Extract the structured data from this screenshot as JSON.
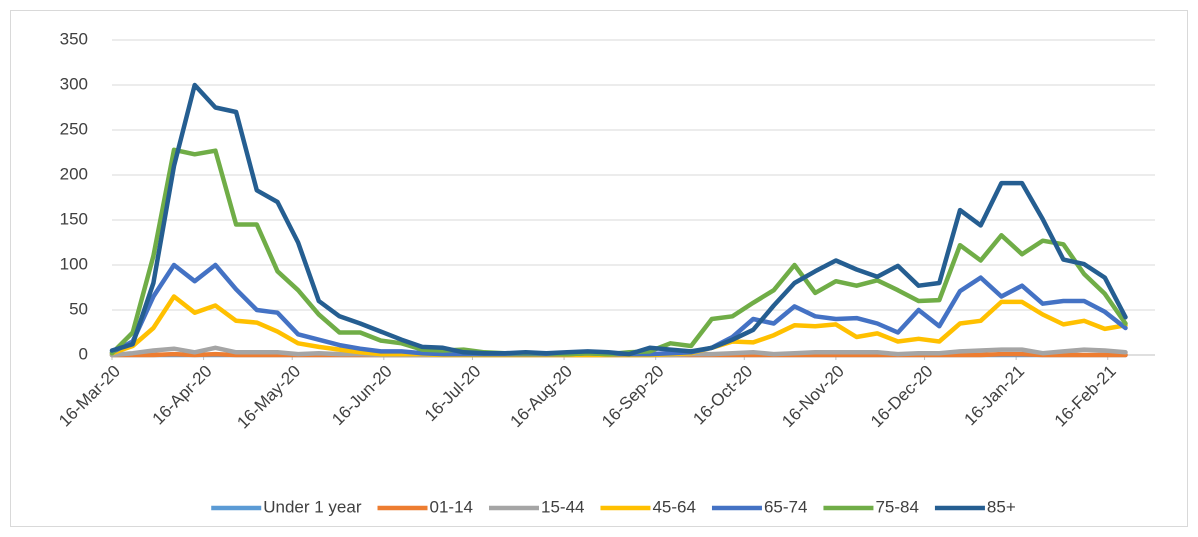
{
  "chart_data": {
    "type": "line",
    "x": [
      "2020-03-16",
      "2020-03-23",
      "2020-03-30",
      "2020-04-06",
      "2020-04-13",
      "2020-04-20",
      "2020-04-27",
      "2020-05-04",
      "2020-05-11",
      "2020-05-18",
      "2020-05-25",
      "2020-06-01",
      "2020-06-08",
      "2020-06-15",
      "2020-06-22",
      "2020-06-29",
      "2020-07-06",
      "2020-07-13",
      "2020-07-20",
      "2020-07-27",
      "2020-08-03",
      "2020-08-10",
      "2020-08-17",
      "2020-08-24",
      "2020-08-31",
      "2020-09-07",
      "2020-09-14",
      "2020-09-21",
      "2020-09-28",
      "2020-10-05",
      "2020-10-12",
      "2020-10-19",
      "2020-10-26",
      "2020-11-02",
      "2020-11-09",
      "2020-11-16",
      "2020-11-23",
      "2020-11-30",
      "2020-12-07",
      "2020-12-14",
      "2020-12-21",
      "2020-12-28",
      "2021-01-04",
      "2021-01-11",
      "2021-01-18",
      "2021-01-25",
      "2021-02-01",
      "2021-02-08",
      "2021-02-15",
      "2021-02-22"
    ],
    "series": [
      {
        "name": "Under 1 year",
        "color": "#5b9bd5",
        "values": [
          0,
          0,
          0,
          0,
          0,
          0,
          0,
          0,
          0,
          0,
          0,
          0,
          0,
          0,
          0,
          0,
          0,
          0,
          0,
          0,
          0,
          0,
          0,
          0,
          0,
          0,
          0,
          0,
          0,
          0,
          0,
          0,
          0,
          0,
          0,
          0,
          0,
          0,
          0,
          0,
          0,
          0,
          0,
          0,
          0,
          0,
          0,
          0,
          0,
          0
        ]
      },
      {
        "name": "01-14",
        "color": "#ed7d31",
        "values": [
          0,
          0,
          0,
          1,
          0,
          1,
          0,
          0,
          0,
          0,
          0,
          0,
          0,
          0,
          0,
          0,
          0,
          0,
          0,
          0,
          0,
          0,
          0,
          0,
          0,
          0,
          0,
          0,
          0,
          0,
          0,
          0,
          0,
          0,
          0,
          0,
          0,
          0,
          0,
          0,
          0,
          0,
          0,
          1,
          1,
          0,
          0,
          0,
          0,
          0
        ]
      },
      {
        "name": "15-44",
        "color": "#a5a5a5",
        "values": [
          0,
          2,
          5,
          7,
          3,
          8,
          3,
          3,
          3,
          1,
          2,
          1,
          1,
          0,
          0,
          0,
          0,
          0,
          0,
          0,
          0,
          0,
          0,
          0,
          0,
          0,
          0,
          0,
          1,
          1,
          2,
          3,
          1,
          2,
          3,
          3,
          3,
          3,
          1,
          2,
          2,
          4,
          5,
          6,
          6,
          2,
          4,
          6,
          5,
          3
        ]
      },
      {
        "name": "45-64",
        "color": "#ffc000",
        "values": [
          2,
          10,
          30,
          65,
          47,
          55,
          38,
          36,
          26,
          13,
          9,
          6,
          3,
          1,
          1,
          1,
          0,
          0,
          0,
          0,
          0,
          0,
          0,
          0,
          0,
          0,
          0,
          1,
          2,
          8,
          15,
          14,
          22,
          33,
          32,
          34,
          20,
          24,
          15,
          18,
          15,
          35,
          38,
          59,
          59,
          45,
          34,
          38,
          29,
          33
        ]
      },
      {
        "name": "65-74",
        "color": "#4472c4",
        "values": [
          3,
          15,
          65,
          100,
          82,
          100,
          73,
          50,
          47,
          23,
          17,
          11,
          7,
          4,
          4,
          2,
          1,
          1,
          1,
          1,
          1,
          1,
          1,
          2,
          1,
          1,
          1,
          2,
          3,
          8,
          20,
          40,
          35,
          54,
          43,
          40,
          41,
          35,
          25,
          50,
          32,
          71,
          86,
          65,
          77,
          57,
          60,
          60,
          48,
          30
        ]
      },
      {
        "name": "75-84",
        "color": "#70ad47",
        "values": [
          2,
          25,
          110,
          228,
          223,
          227,
          145,
          145,
          93,
          72,
          45,
          25,
          25,
          16,
          13,
          6,
          5,
          6,
          3,
          2,
          2,
          2,
          1,
          2,
          1,
          3,
          4,
          13,
          10,
          40,
          43,
          58,
          72,
          100,
          69,
          82,
          77,
          83,
          72,
          60,
          61,
          122,
          105,
          133,
          112,
          127,
          123,
          90,
          68,
          35
        ]
      },
      {
        "name": "85+",
        "color": "#255e91",
        "values": [
          5,
          12,
          80,
          210,
          300,
          275,
          270,
          183,
          170,
          125,
          60,
          43,
          35,
          26,
          17,
          9,
          8,
          3,
          2,
          2,
          3,
          2,
          3,
          4,
          3,
          1,
          8,
          6,
          4,
          8,
          17,
          28,
          55,
          80,
          93,
          105,
          95,
          87,
          99,
          77,
          80,
          161,
          144,
          191,
          191,
          151,
          106,
          101,
          86,
          42
        ]
      }
    ],
    "xlim": [
      "2020-03-16",
      "2021-03-04"
    ],
    "xticks": [
      {
        "value": "2020-03-16",
        "label": "16-Mar-20"
      },
      {
        "value": "2020-04-16",
        "label": "16-Apr-20"
      },
      {
        "value": "2020-05-16",
        "label": "16-May-20"
      },
      {
        "value": "2020-06-16",
        "label": "16-Jun-20"
      },
      {
        "value": "2020-07-16",
        "label": "16-Jul-20"
      },
      {
        "value": "2020-08-16",
        "label": "16-Aug-20"
      },
      {
        "value": "2020-09-16",
        "label": "16-Sep-20"
      },
      {
        "value": "2020-10-16",
        "label": "16-Oct-20"
      },
      {
        "value": "2020-11-16",
        "label": "16-Nov-20"
      },
      {
        "value": "2020-12-16",
        "label": "16-Dec-20"
      },
      {
        "value": "2021-01-16",
        "label": "16-Jan-21"
      },
      {
        "value": "2021-02-16",
        "label": "16-Feb-21"
      }
    ],
    "ylim": [
      0,
      350
    ],
    "yticks": [
      0,
      50,
      100,
      150,
      200,
      250,
      300,
      350
    ],
    "grid": true,
    "legend": "bottom"
  }
}
